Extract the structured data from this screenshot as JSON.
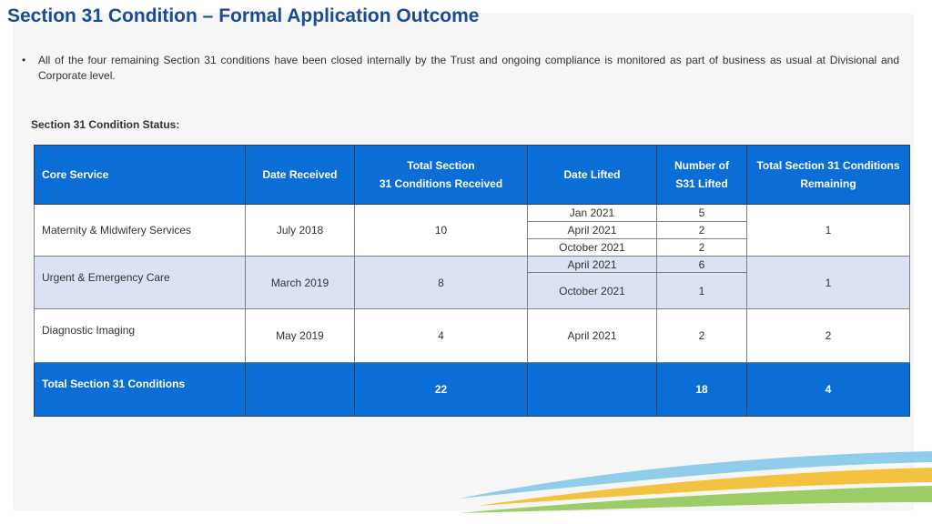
{
  "title": "Section 31 Condition – Formal Application Outcome",
  "bullet_text": "All of the four remaining Section 31 conditions have been closed internally by the Trust and ongoing compliance is monitored as part of business as usual at Divisional and Corporate level.",
  "status_label": "Section 31 Condition Status:",
  "table": {
    "headers": {
      "core_service": "Core Service",
      "date_received": "Date Received",
      "total_received_line1": "Total Section",
      "total_received_line2": "31 Conditions Received",
      "date_lifted": "Date Lifted",
      "number_lifted_line1": "Number of",
      "number_lifted_line2": "S31 Lifted",
      "remaining_line1": "Total Section 31 Conditions",
      "remaining_line2": "Remaining"
    },
    "rows": [
      {
        "service": "Maternity & Midwifery Services",
        "date_received": "July 2018",
        "total_received": "10",
        "lifted": [
          {
            "date": "Jan 2021",
            "count": "5"
          },
          {
            "date": "April 2021",
            "count": "2"
          },
          {
            "date": "October 2021",
            "count": "2"
          }
        ],
        "remaining": "1"
      },
      {
        "service": "Urgent & Emergency Care",
        "date_received": "March 2019",
        "total_received": "8",
        "lifted": [
          {
            "date": "April 2021",
            "count": "6"
          },
          {
            "date": "October 2021",
            "count": "1"
          }
        ],
        "remaining": "1"
      },
      {
        "service": "Diagnostic Imaging",
        "date_received": "May 2019",
        "total_received": "4",
        "lifted": [
          {
            "date": "April 2021",
            "count": "2"
          }
        ],
        "remaining": "2"
      }
    ],
    "total": {
      "label": "Total Section 31 Conditions",
      "date_received": "",
      "total_received": "22",
      "date_lifted": "",
      "number_lifted": "18",
      "remaining": "4"
    }
  },
  "colors": {
    "title": "#1a4c96",
    "header_bg": "#0b6ed6",
    "alt_row_bg": "#dbe2f2"
  }
}
